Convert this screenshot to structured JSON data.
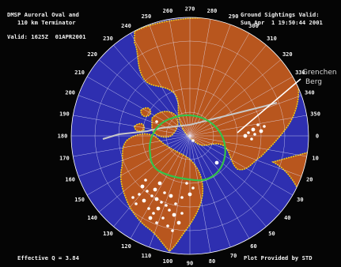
{
  "title_line1": "DMSP Auroral Oval and",
  "title_line2": "110 km Terminator",
  "valid_time": "Valid: 1625Z  01APR2001",
  "sightings_line1": "Ground Sightings Valid:",
  "sightings_line2": "Sun Apr  1 19:50:44 2001",
  "callout_line1": "Grenchen",
  "callout_line2": "Berg",
  "effective_q": "Effective Q = 3.84",
  "provider": "Plot Provided by STD",
  "longitude_labels": [
    "0",
    "10",
    "20",
    "30",
    "40",
    "50",
    "60",
    "70",
    "80",
    "90",
    "100",
    "110",
    "120",
    "130",
    "140",
    "150",
    "160",
    "170",
    "180",
    "190",
    "200",
    "210",
    "220",
    "230",
    "240",
    "250",
    "260",
    "270",
    "280",
    "290",
    "300",
    "310",
    "320",
    "330",
    "340",
    "350"
  ],
  "colors": {
    "ocean": "#2e2fb0",
    "land": "#b8561e",
    "coast": "#f0c818",
    "auroral_oval": "#34c24a",
    "terminator": "#c8c8c8",
    "grid": "#e8e8ff",
    "sighting": "#ffffff"
  }
}
